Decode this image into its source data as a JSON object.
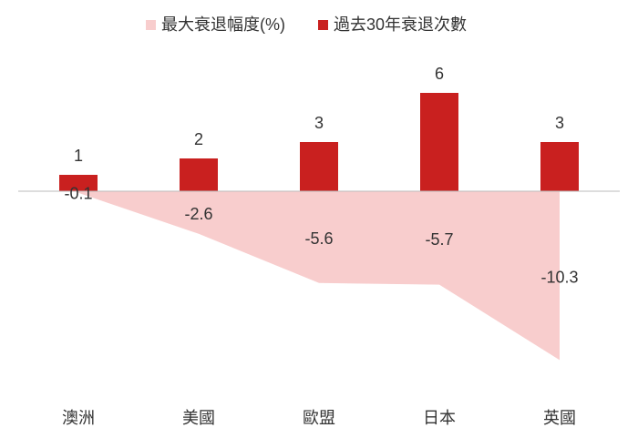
{
  "chart_data": {
    "type": "combo",
    "categories": [
      "澳洲",
      "美國",
      "歐盟",
      "日本",
      "英國"
    ],
    "series": [
      {
        "name": "最大衰退幅度(%)",
        "type": "area",
        "color": "#f8cdcd",
        "values": [
          -0.1,
          -2.6,
          -5.6,
          -5.7,
          -10.3
        ]
      },
      {
        "name": "過去30年衰退次數",
        "type": "bar",
        "color": "#c9201f",
        "values": [
          1,
          2,
          3,
          6,
          3
        ]
      }
    ],
    "ylim": [
      -12,
      8
    ]
  }
}
